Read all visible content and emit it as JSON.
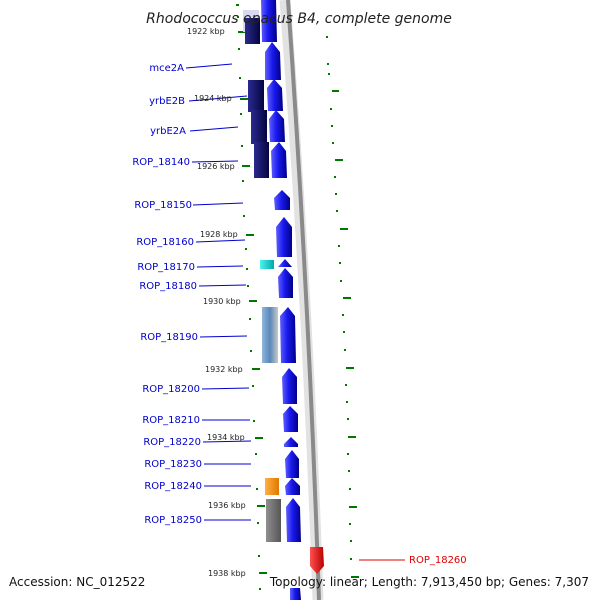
{
  "title": "Rhodococcus opacus B4, complete genome",
  "footer": {
    "accession": "Accession: NC_012522",
    "summary": "Topology: linear; Length: 7,913,450 bp; Genes: 7,307"
  },
  "tick_labels": [
    "1922 kbp",
    "1924 kbp",
    "1926 kbp",
    "1928 kbp",
    "1930 kbp",
    "1932 kbp",
    "1934 kbp",
    "1936 kbp",
    "1938 kbp"
  ],
  "gene_labels": [
    "mce2A",
    "yrbE2B",
    "yrbE2A",
    "ROP_18140",
    "ROP_18150",
    "ROP_18160",
    "ROP_18170",
    "ROP_18180",
    "ROP_18190",
    "ROP_18200",
    "ROP_18210",
    "ROP_18220",
    "ROP_18230",
    "ROP_18240",
    "ROP_18250",
    "ROP_18260"
  ],
  "colors": {
    "forward_gene": "#1a1aee",
    "cog_dark": "#0a0a6e",
    "cog_cyan": "#00cccc",
    "cog_steel": "#6a9ac8",
    "cog_orange": "#ff9900",
    "cog_gray": "#777777",
    "reverse_gene": "#ee0000",
    "label_blue": "#0000cc",
    "label_red": "#dd0000",
    "scale_green": "#007700"
  }
}
